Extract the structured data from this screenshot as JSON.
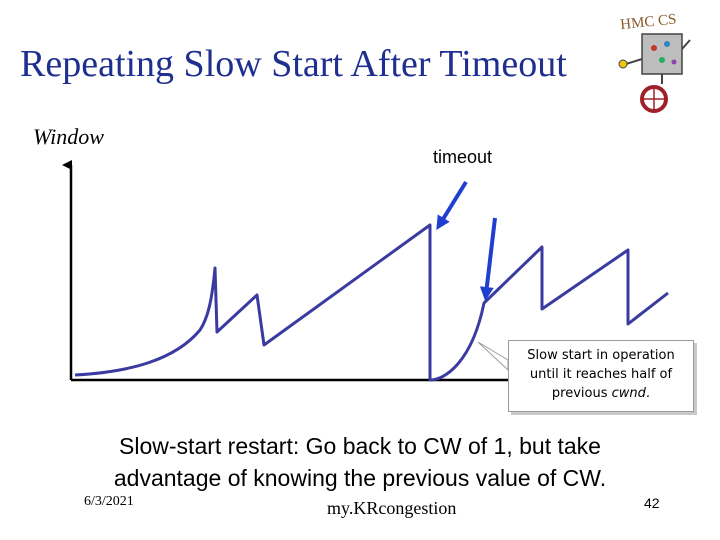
{
  "slide": {
    "title": "Repeating Slow Start After Timeout",
    "window_label": "Window",
    "timeout_label": "timeout",
    "callout_line1": "Slow start in operation",
    "callout_line2": "until it reaches half of",
    "callout_line3_prefix": "previous ",
    "callout_line3_emph": "cwnd",
    "callout_line3_suffix": ".",
    "caption_line1": "Slow-start restart: Go back to CW of 1, but take",
    "caption_line2": "advantage of knowing the previous value of CW.",
    "footer_date": "6/3/2021",
    "footer_center": "my.KRcongestion",
    "page_number": "42"
  },
  "logo": {
    "icon": "hmc-cs-robot-logo",
    "text": "HMC CS"
  },
  "colors": {
    "title": "#1f2f8f",
    "curve": "#3a3aa0",
    "arrow": "#1f3fd0",
    "axis": "#000000"
  }
}
